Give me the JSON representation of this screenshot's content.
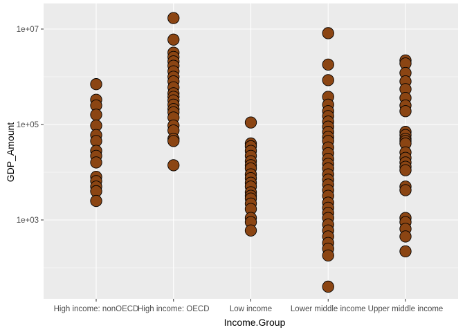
{
  "chart_data": {
    "type": "scatter",
    "title": "",
    "xlabel": "Income.Group",
    "ylabel": "GDP_Amount",
    "y_scale": "log10",
    "ylim": [
      25,
      20000000
    ],
    "categories": [
      "High income: nonOECD",
      "High income: OECD",
      "Low income",
      "Lower middle income",
      "Upper middle income"
    ],
    "y_ticks": [
      {
        "value": 1000,
        "label": "1e+03"
      },
      {
        "value": 100000,
        "label": "1e+05"
      },
      {
        "value": 10000000,
        "label": "1e+07"
      }
    ],
    "grid": true,
    "background": "#ebebeb",
    "gridline_color": "#ffffff",
    "point_fill": "#8b4513",
    "point_stroke": "#000000",
    "points": [
      {
        "category": "High income: nonOECD",
        "values": [
          700000,
          330000,
          250000,
          160000,
          95000,
          60000,
          45000,
          28000,
          22000,
          16000,
          8000,
          6500,
          5000,
          4000,
          2500
        ]
      },
      {
        "category": "High income: OECD",
        "values": [
          17000000,
          6000000,
          3200000,
          2600000,
          2100000,
          1700000,
          1300000,
          1000000,
          800000,
          600000,
          450000,
          380000,
          320000,
          260000,
          210000,
          180000,
          140000,
          95000,
          75000,
          50000,
          45000,
          14000
        ]
      },
      {
        "category": "Low income",
        "values": [
          110000,
          40000,
          35000,
          28000,
          22000,
          17000,
          14000,
          12000,
          9000,
          7500,
          6000,
          5000,
          3800,
          3200,
          2800,
          2200,
          1700,
          1100,
          900,
          600
        ]
      },
      {
        "category": "Lower middle income",
        "values": [
          8200000,
          1800000,
          850000,
          380000,
          260000,
          190000,
          150000,
          115000,
          90000,
          70000,
          55000,
          45000,
          33000,
          25000,
          19000,
          15000,
          12000,
          9000,
          7000,
          5500,
          4200,
          3200,
          2300,
          1800,
          1400,
          1100,
          800,
          600,
          450,
          330,
          250,
          180,
          40
        ]
      },
      {
        "category": "Upper middle income",
        "values": [
          2200000,
          1900000,
          1200000,
          800000,
          550000,
          360000,
          250000,
          190000,
          70000,
          60000,
          50000,
          45000,
          40000,
          26000,
          20000,
          16000,
          13000,
          11000,
          5000,
          4200,
          1100,
          900,
          650,
          450,
          220
        ]
      }
    ]
  }
}
